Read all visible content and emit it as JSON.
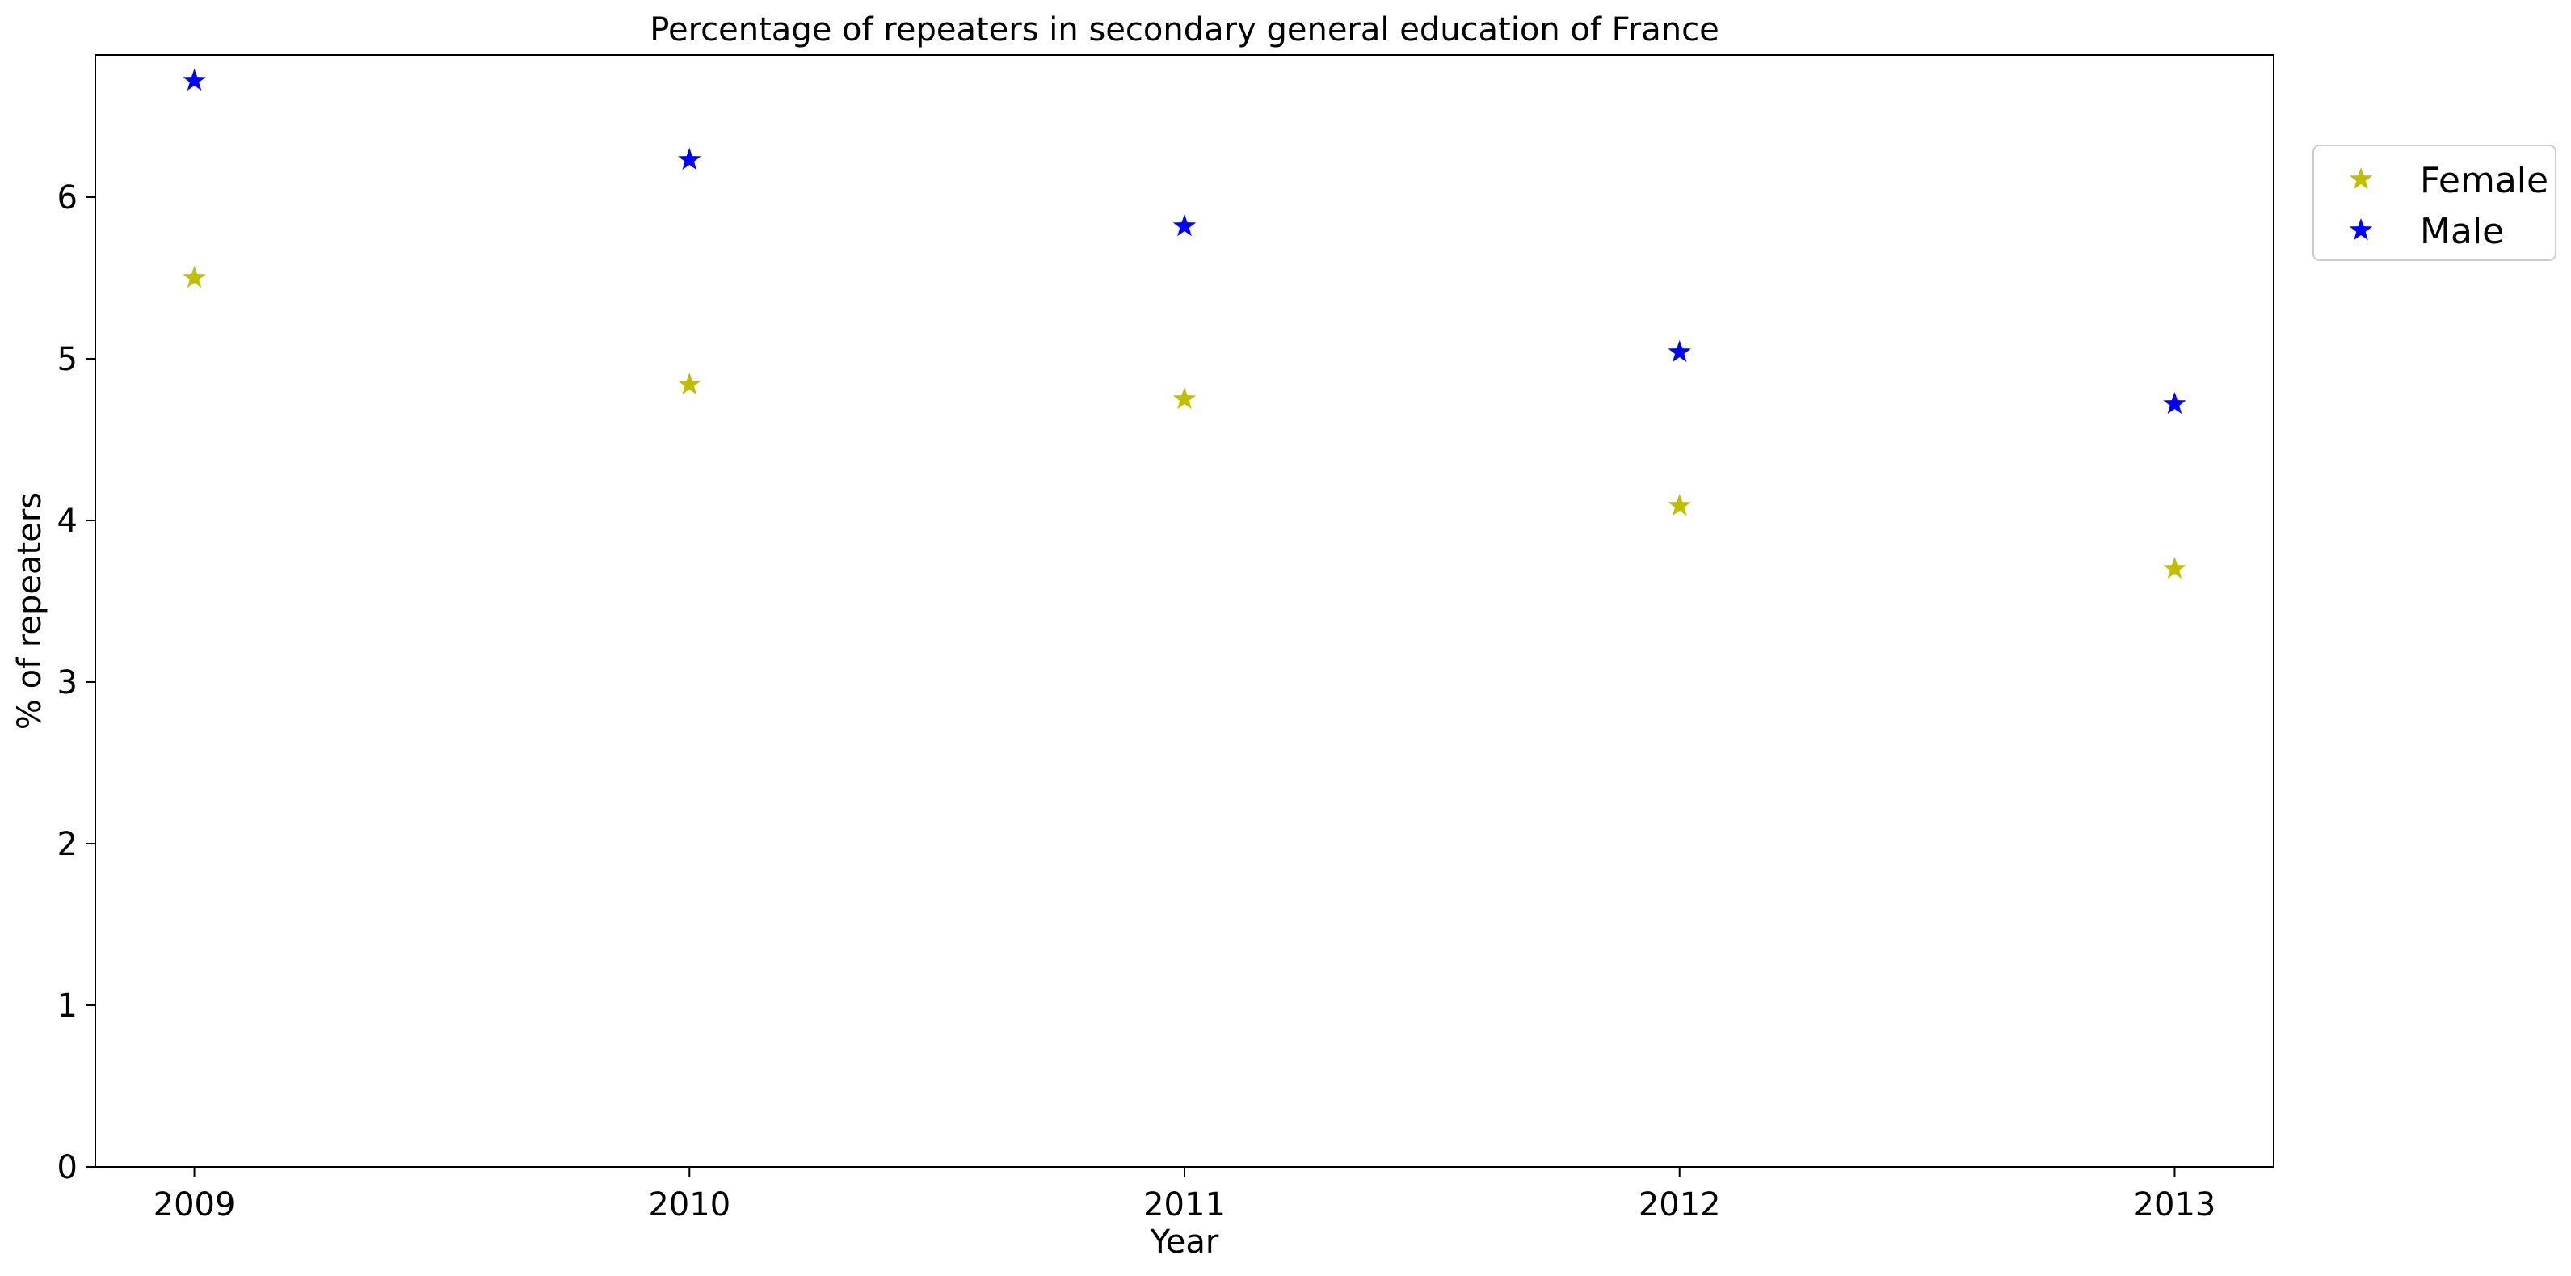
{
  "chart_data": {
    "type": "scatter",
    "title": "Percentage of repeaters in secondary general education of France",
    "xlabel": "Year",
    "ylabel": "% of repeaters",
    "x": [
      "2009",
      "2010",
      "2011",
      "2012",
      "2013"
    ],
    "xlim": [
      2008.8,
      2013.2
    ],
    "ylim": [
      0,
      6.88
    ],
    "yticks": [
      "0",
      "1",
      "2",
      "3",
      "4",
      "5",
      "6"
    ],
    "grid": false,
    "marker": "star",
    "legend_position": "outside-right-top",
    "series": [
      {
        "name": "Female",
        "color": "#bfbf00",
        "values": [
          5.5,
          4.84,
          4.75,
          4.09,
          3.7
        ]
      },
      {
        "name": "Male",
        "color": "#0000ff",
        "values": [
          6.72,
          6.23,
          5.82,
          5.04,
          4.72
        ]
      }
    ]
  }
}
